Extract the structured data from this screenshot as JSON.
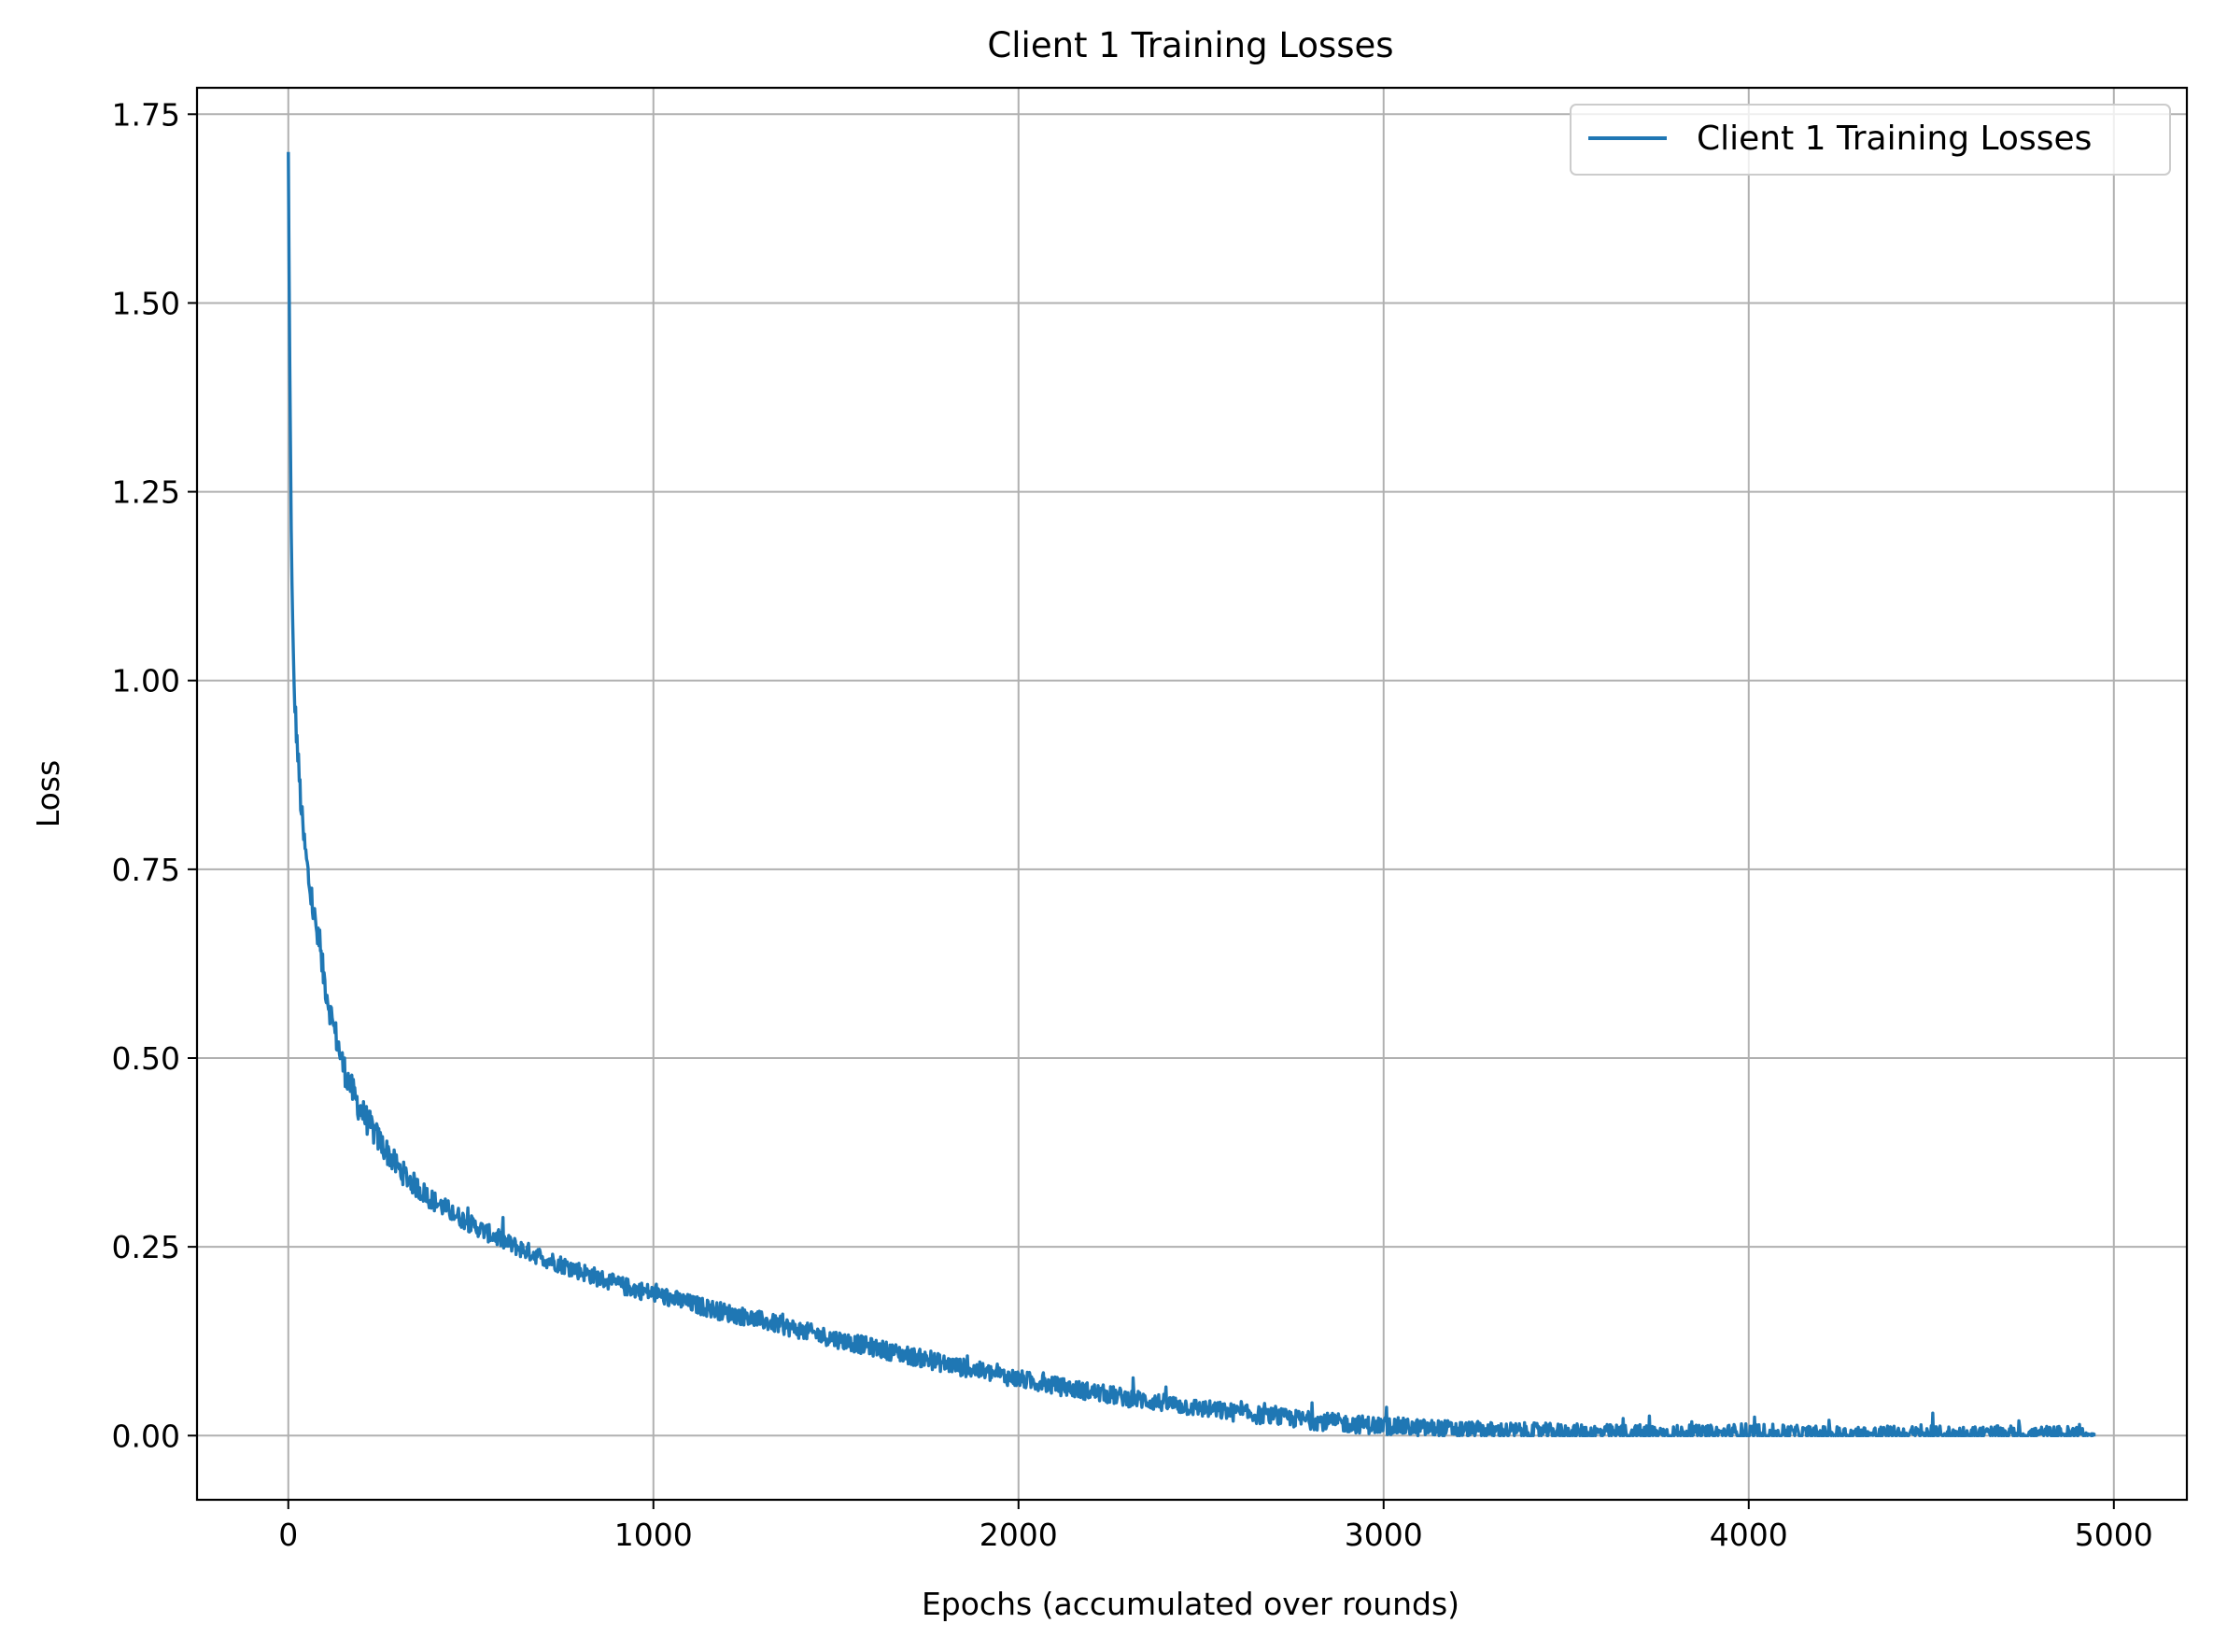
{
  "chart_data": {
    "type": "line",
    "title": "Client 1 Training Losses",
    "xlabel": "Epochs (accumulated over rounds)",
    "ylabel": "Loss",
    "xlim": [
      -250,
      5200
    ],
    "ylim": [
      -0.085,
      1.785
    ],
    "xticks": [
      0,
      1000,
      2000,
      3000,
      4000,
      5000
    ],
    "xtick_labels": [
      "0",
      "1000",
      "2000",
      "3000",
      "4000",
      "5000"
    ],
    "yticks": [
      0.0,
      0.25,
      0.5,
      0.75,
      1.0,
      1.25,
      1.5,
      1.75
    ],
    "ytick_labels": [
      "0.00",
      "0.25",
      "0.50",
      "0.75",
      "1.00",
      "1.25",
      "1.50",
      "1.75"
    ],
    "grid": true,
    "legend_position": "top-right",
    "series": [
      {
        "name": "Client 1 Training Losses",
        "color": "#1f77b4",
        "x": [
          0,
          5,
          10,
          15,
          20,
          30,
          40,
          50,
          60,
          80,
          100,
          120,
          150,
          180,
          200,
          250,
          300,
          350,
          400,
          450,
          500,
          600,
          700,
          800,
          900,
          1000,
          1100,
          1200,
          1300,
          1400,
          1500,
          1600,
          1700,
          1800,
          1900,
          2000,
          2100,
          2200,
          2300,
          2400,
          2500,
          2600,
          2700,
          2800,
          2900,
          3000,
          3100,
          3200,
          3300,
          3400,
          3500,
          3600,
          3700,
          3800,
          3900,
          4000,
          4100,
          4200,
          4300,
          4400,
          4500,
          4600,
          4700,
          4800,
          4900,
          4950
        ],
        "y": [
          1.7,
          1.35,
          1.12,
          1.0,
          0.95,
          0.87,
          0.8,
          0.76,
          0.72,
          0.66,
          0.6,
          0.55,
          0.49,
          0.45,
          0.43,
          0.39,
          0.355,
          0.33,
          0.31,
          0.295,
          0.28,
          0.255,
          0.235,
          0.218,
          0.2,
          0.188,
          0.175,
          0.163,
          0.152,
          0.14,
          0.128,
          0.117,
          0.106,
          0.095,
          0.085,
          0.075,
          0.066,
          0.058,
          0.05,
          0.043,
          0.036,
          0.03,
          0.025,
          0.02,
          0.016,
          0.013,
          0.01,
          0.008,
          0.006,
          0.005,
          0.004,
          0.003,
          0.003,
          0.002,
          0.002,
          0.002,
          0.002,
          0.001,
          0.001,
          0.001,
          0.001,
          0.001,
          0.001,
          0.001,
          0.001,
          0.001
        ],
        "noise_amplitude": [
          0.0,
          0.02,
          0.02,
          0.02,
          0.02,
          0.02,
          0.02,
          0.02,
          0.02,
          0.02,
          0.02,
          0.02,
          0.02,
          0.02,
          0.02,
          0.018,
          0.016,
          0.015,
          0.014,
          0.013,
          0.012,
          0.012,
          0.012,
          0.012,
          0.012,
          0.012,
          0.012,
          0.012,
          0.012,
          0.012,
          0.012,
          0.012,
          0.012,
          0.012,
          0.012,
          0.012,
          0.012,
          0.012,
          0.012,
          0.012,
          0.012,
          0.012,
          0.012,
          0.012,
          0.012,
          0.012,
          0.012,
          0.012,
          0.012,
          0.012,
          0.012,
          0.012,
          0.012,
          0.012,
          0.012,
          0.015,
          0.012,
          0.012,
          0.012,
          0.012,
          0.012,
          0.012,
          0.012,
          0.012,
          0.012,
          0.0
        ]
      }
    ]
  }
}
